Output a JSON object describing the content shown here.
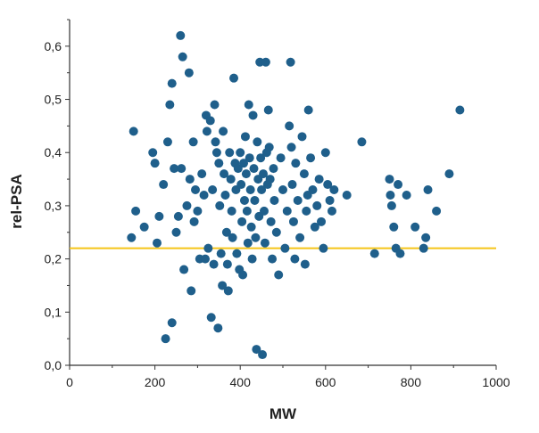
{
  "chart_data": {
    "type": "scatter",
    "title": "",
    "xlabel": "MW",
    "ylabel": "rel-PSA",
    "xlim": [
      0,
      1000
    ],
    "ylim": [
      0,
      0.65
    ],
    "grid": false,
    "legend": "none",
    "x_ticks": [
      0,
      200,
      400,
      600,
      800,
      1000
    ],
    "x_tick_labels": [
      "0",
      "200",
      "400",
      "600",
      "800",
      "1000"
    ],
    "y_ticks": [
      0,
      0.1,
      0.2,
      0.3,
      0.4,
      0.5,
      0.6
    ],
    "y_tick_labels": [
      "0,0",
      "0,1",
      "0,2",
      "0,3",
      "0,4",
      "0,5",
      "0,6"
    ],
    "reference_line": {
      "y": 0.22,
      "color": "#f5c518"
    },
    "point_color": "#1f5f8b",
    "series": [
      {
        "points": [
          [
            145,
            0.24
          ],
          [
            150,
            0.44
          ],
          [
            155,
            0.29
          ],
          [
            175,
            0.26
          ],
          [
            195,
            0.4
          ],
          [
            200,
            0.38
          ],
          [
            205,
            0.23
          ],
          [
            210,
            0.28
          ],
          [
            220,
            0.34
          ],
          [
            225,
            0.05
          ],
          [
            230,
            0.42
          ],
          [
            235,
            0.49
          ],
          [
            240,
            0.53
          ],
          [
            240,
            0.08
          ],
          [
            245,
            0.37
          ],
          [
            250,
            0.25
          ],
          [
            255,
            0.28
          ],
          [
            260,
            0.62
          ],
          [
            262,
            0.37
          ],
          [
            265,
            0.58
          ],
          [
            268,
            0.18
          ],
          [
            275,
            0.3
          ],
          [
            280,
            0.55
          ],
          [
            282,
            0.35
          ],
          [
            285,
            0.14
          ],
          [
            290,
            0.42
          ],
          [
            292,
            0.27
          ],
          [
            295,
            0.33
          ],
          [
            300,
            0.29
          ],
          [
            305,
            0.2
          ],
          [
            310,
            0.36
          ],
          [
            315,
            0.32
          ],
          [
            318,
            0.2
          ],
          [
            320,
            0.47
          ],
          [
            322,
            0.44
          ],
          [
            325,
            0.22
          ],
          [
            330,
            0.46
          ],
          [
            332,
            0.09
          ],
          [
            335,
            0.33
          ],
          [
            338,
            0.19
          ],
          [
            340,
            0.49
          ],
          [
            342,
            0.42
          ],
          [
            345,
            0.4
          ],
          [
            348,
            0.07
          ],
          [
            350,
            0.38
          ],
          [
            352,
            0.3
          ],
          [
            355,
            0.21
          ],
          [
            358,
            0.15
          ],
          [
            360,
            0.44
          ],
          [
            362,
            0.36
          ],
          [
            365,
            0.32
          ],
          [
            368,
            0.25
          ],
          [
            370,
            0.19
          ],
          [
            372,
            0.14
          ],
          [
            375,
            0.4
          ],
          [
            378,
            0.35
          ],
          [
            380,
            0.29
          ],
          [
            382,
            0.24
          ],
          [
            385,
            0.54
          ],
          [
            388,
            0.38
          ],
          [
            390,
            0.33
          ],
          [
            392,
            0.21
          ],
          [
            395,
            0.37
          ],
          [
            398,
            0.18
          ],
          [
            400,
            0.4
          ],
          [
            402,
            0.34
          ],
          [
            404,
            0.27
          ],
          [
            406,
            0.17
          ],
          [
            408,
            0.38
          ],
          [
            410,
            0.31
          ],
          [
            412,
            0.43
          ],
          [
            414,
            0.36
          ],
          [
            416,
            0.29
          ],
          [
            418,
            0.23
          ],
          [
            420,
            0.49
          ],
          [
            422,
            0.39
          ],
          [
            424,
            0.33
          ],
          [
            426,
            0.26
          ],
          [
            428,
            0.2
          ],
          [
            430,
            0.47
          ],
          [
            432,
            0.37
          ],
          [
            434,
            0.31
          ],
          [
            436,
            0.24
          ],
          [
            438,
            0.03
          ],
          [
            440,
            0.42
          ],
          [
            442,
            0.35
          ],
          [
            444,
            0.28
          ],
          [
            446,
            0.57
          ],
          [
            448,
            0.39
          ],
          [
            450,
            0.33
          ],
          [
            452,
            0.02
          ],
          [
            454,
            0.36
          ],
          [
            456,
            0.29
          ],
          [
            458,
            0.23
          ],
          [
            460,
            0.57
          ],
          [
            462,
            0.4
          ],
          [
            464,
            0.34
          ],
          [
            466,
            0.48
          ],
          [
            468,
            0.41
          ],
          [
            470,
            0.35
          ],
          [
            472,
            0.27
          ],
          [
            475,
            0.2
          ],
          [
            478,
            0.37
          ],
          [
            480,
            0.31
          ],
          [
            485,
            0.25
          ],
          [
            490,
            0.17
          ],
          [
            495,
            0.39
          ],
          [
            500,
            0.33
          ],
          [
            505,
            0.22
          ],
          [
            510,
            0.29
          ],
          [
            515,
            0.45
          ],
          [
            518,
            0.57
          ],
          [
            520,
            0.41
          ],
          [
            522,
            0.34
          ],
          [
            525,
            0.27
          ],
          [
            528,
            0.2
          ],
          [
            530,
            0.38
          ],
          [
            535,
            0.31
          ],
          [
            540,
            0.24
          ],
          [
            545,
            0.43
          ],
          [
            550,
            0.36
          ],
          [
            552,
            0.19
          ],
          [
            555,
            0.29
          ],
          [
            558,
            0.32
          ],
          [
            560,
            0.48
          ],
          [
            565,
            0.39
          ],
          [
            570,
            0.33
          ],
          [
            575,
            0.26
          ],
          [
            580,
            0.3
          ],
          [
            585,
            0.35
          ],
          [
            590,
            0.27
          ],
          [
            595,
            0.22
          ],
          [
            600,
            0.4
          ],
          [
            605,
            0.34
          ],
          [
            610,
            0.31
          ],
          [
            615,
            0.29
          ],
          [
            620,
            0.33
          ],
          [
            650,
            0.32
          ],
          [
            685,
            0.42
          ],
          [
            715,
            0.21
          ],
          [
            750,
            0.35
          ],
          [
            752,
            0.32
          ],
          [
            755,
            0.3
          ],
          [
            760,
            0.26
          ],
          [
            765,
            0.22
          ],
          [
            770,
            0.34
          ],
          [
            775,
            0.21
          ],
          [
            790,
            0.32
          ],
          [
            810,
            0.26
          ],
          [
            830,
            0.22
          ],
          [
            835,
            0.24
          ],
          [
            840,
            0.33
          ],
          [
            860,
            0.29
          ],
          [
            890,
            0.36
          ],
          [
            915,
            0.48
          ]
        ]
      }
    ]
  }
}
